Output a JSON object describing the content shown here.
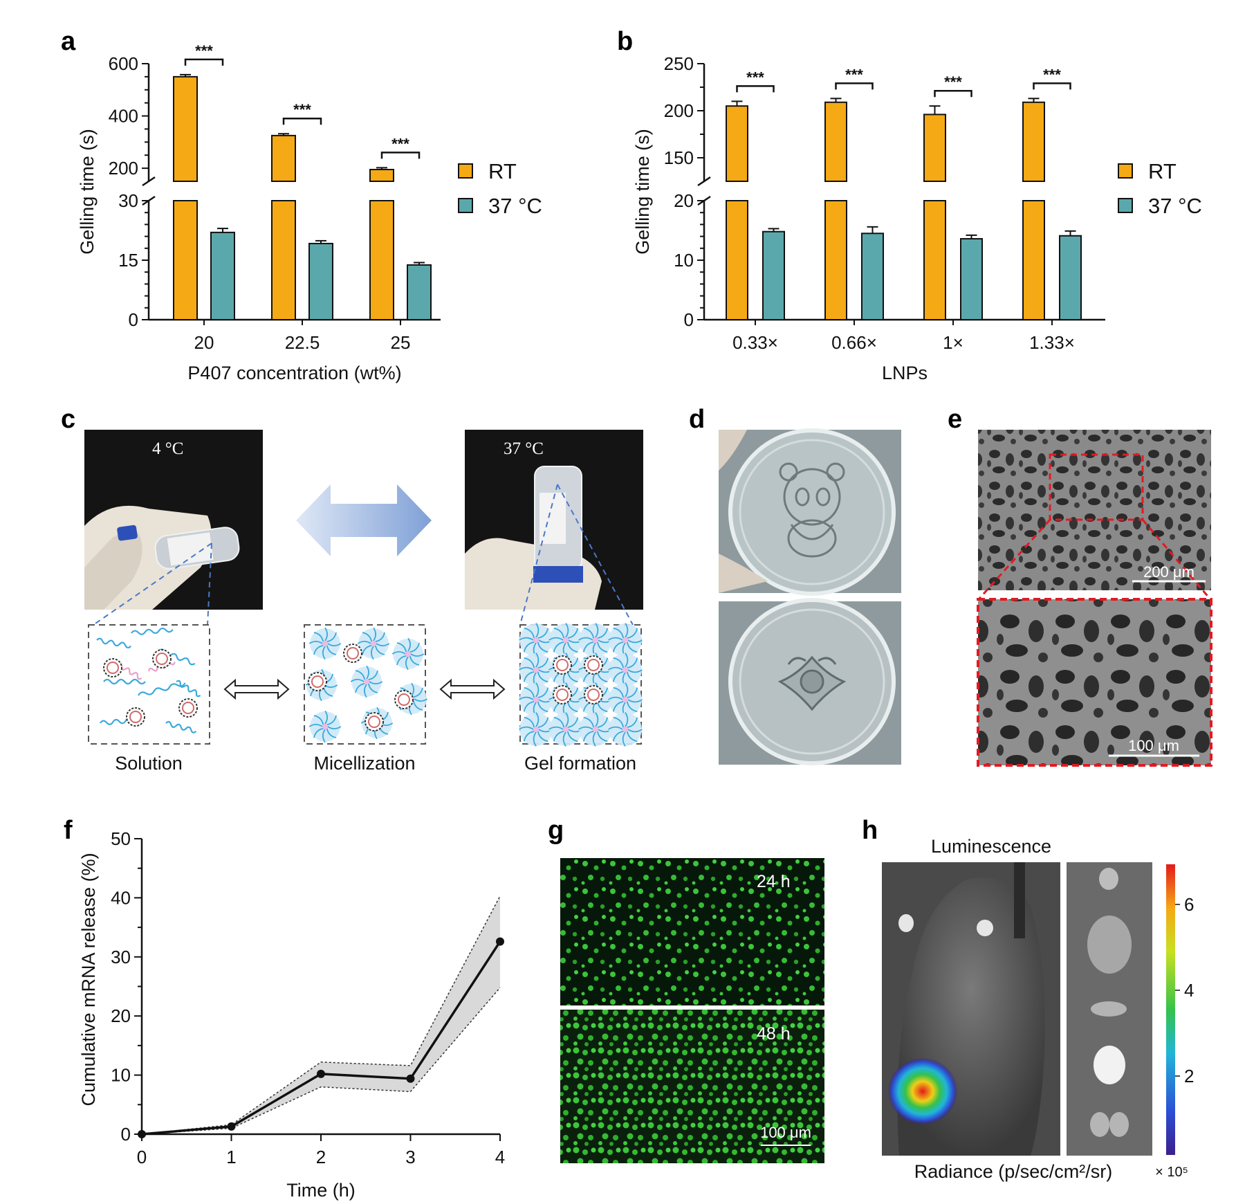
{
  "panels": {
    "a": "a",
    "b": "b",
    "c": "c",
    "d": "d",
    "e": "e",
    "f": "f",
    "g": "g",
    "h": "h"
  },
  "colors": {
    "rt": "#F5A915",
    "c37": "#5BA8AC",
    "line": "#111111",
    "band": "#d9d9d9"
  },
  "legend": {
    "rt": "RT",
    "c37": "37 °C"
  },
  "significance": "***",
  "chart_data": [
    {
      "id": "a",
      "type": "bar",
      "ylabel": "Gelling time (s)",
      "xlabel": "P407 concentration (wt%)",
      "categories": [
        "20",
        "22.5",
        "25"
      ],
      "broken_axis": {
        "lower": [
          0,
          30
        ],
        "upper": [
          150,
          600
        ]
      },
      "yticks_lower": [
        "0",
        "15",
        "30"
      ],
      "yticks_upper": [
        "200",
        "400",
        "600"
      ],
      "series": [
        {
          "name": "RT",
          "values": [
            550,
            325,
            195
          ],
          "errors": [
            8,
            7,
            7
          ]
        },
        {
          "name": "37 °C",
          "values": [
            22,
            19.2,
            13.8
          ],
          "errors": [
            1.0,
            0.7,
            0.6
          ]
        }
      ]
    },
    {
      "id": "b",
      "type": "bar",
      "ylabel": "Gelling time (s)",
      "xlabel": "LNPs",
      "categories": [
        "0.33×",
        "0.66×",
        "1×",
        "1.33×"
      ],
      "broken_axis": {
        "lower": [
          0,
          20
        ],
        "upper": [
          125,
          250
        ]
      },
      "yticks_lower": [
        "0",
        "10",
        "20"
      ],
      "yticks_upper": [
        "150",
        "200",
        "250"
      ],
      "series": [
        {
          "name": "RT",
          "values": [
            205,
            209,
            196,
            209
          ],
          "errors": [
            5,
            4,
            9,
            4
          ]
        },
        {
          "name": "37 °C",
          "values": [
            14.8,
            14.5,
            13.6,
            14.1
          ],
          "errors": [
            0.5,
            1.1,
            0.6,
            0.8
          ]
        }
      ]
    },
    {
      "id": "f",
      "type": "line",
      "ylabel": "Cumulative mRNA release (%)",
      "xlabel": "Time (h)",
      "x": [
        0,
        1,
        2,
        3,
        4
      ],
      "y": [
        0,
        1.3,
        10.2,
        9.4,
        32.6
      ],
      "band_upper": [
        0,
        1.6,
        12.2,
        11.6,
        40.3
      ],
      "band_lower": [
        0,
        1.0,
        8.0,
        7.2,
        24.8
      ],
      "xlim": [
        0,
        4
      ],
      "ylim": [
        0,
        50
      ],
      "xticks": [
        "0",
        "1",
        "2",
        "3",
        "4"
      ],
      "yticks": [
        "0",
        "10",
        "20",
        "30",
        "40",
        "50"
      ]
    }
  ],
  "panel_c": {
    "left_photo_temp": "4 °C",
    "right_photo_temp": "37 °C",
    "captions": [
      "Solution",
      "Micellization",
      "Gel formation"
    ]
  },
  "panel_e": {
    "scale_top": "200 μm",
    "scale_bottom": "100 μm"
  },
  "panel_g": {
    "label_top": "24 h",
    "label_bottom": "48 h",
    "scale": "100 μm"
  },
  "panel_h": {
    "title": "Luminescence",
    "colorbar_ticks": [
      "2",
      "4",
      "6"
    ],
    "radiance_label": "Radiance (p/sec/cm²/sr)",
    "multiplier": "× 10⁵"
  }
}
